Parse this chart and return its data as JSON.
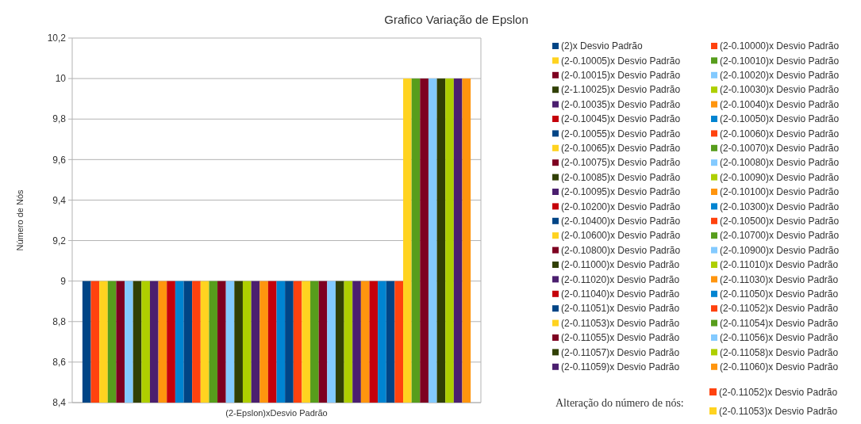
{
  "chart_data": {
    "type": "bar",
    "title": "Grafico Variação de Epslon",
    "ylabel": "Número de Nós",
    "categories": [
      "(2-Epslon)xDesvio Padrão"
    ],
    "ylim": [
      8.4,
      10.2
    ],
    "yticks": [
      {
        "value": 8.4,
        "label": "8,4"
      },
      {
        "value": 8.6,
        "label": "8,6"
      },
      {
        "value": 8.8,
        "label": "8,8"
      },
      {
        "value": 9,
        "label": "9"
      },
      {
        "value": 9.2,
        "label": "9,2"
      },
      {
        "value": 9.4,
        "label": "9,4"
      },
      {
        "value": 9.6,
        "label": "9,6"
      },
      {
        "value": 9.8,
        "label": "9,8"
      },
      {
        "value": 10,
        "label": "10"
      },
      {
        "value": 10.2,
        "label": "10,2"
      }
    ],
    "grid": "y",
    "legend": "right",
    "annotations": [
      "Alteração do número de nós:",
      "(2-0.11052)x Desvio Padrão",
      "(2-0.11053)x Desvio Padrão"
    ],
    "series": [
      {
        "name": "(2)x Desvio Padrão",
        "color": "#004586",
        "values": [
          9
        ]
      },
      {
        "name": "(2-0.10000)x Desvio Padrão",
        "color": "#ff420e",
        "values": [
          9
        ]
      },
      {
        "name": "(2-0.10005)x Desvio Padrão",
        "color": "#ffd320",
        "values": [
          9
        ]
      },
      {
        "name": "(2-0.10010)x Desvio Padrão",
        "color": "#579d1c",
        "values": [
          9
        ]
      },
      {
        "name": "(2-0.10015)x Desvio Padrão",
        "color": "#7e0021",
        "values": [
          9
        ]
      },
      {
        "name": "(2-0.10020)x Desvio Padrão",
        "color": "#83caff",
        "values": [
          9
        ]
      },
      {
        "name": "(2-1.10025)x Desvio Padrão",
        "color": "#314004",
        "values": [
          9
        ]
      },
      {
        "name": "(2-0.10030)x Desvio Padrão",
        "color": "#aecf00",
        "values": [
          9
        ]
      },
      {
        "name": "(2-0.10035)x Desvio Padrão",
        "color": "#4b1f6f",
        "values": [
          9
        ]
      },
      {
        "name": "(2-0.10040)x Desvio Padrão",
        "color": "#ff950e",
        "values": [
          9
        ]
      },
      {
        "name": "(2-0.10045)x Desvio Padrão",
        "color": "#c5000b",
        "values": [
          9
        ]
      },
      {
        "name": "(2-0.10050)x Desvio Padrão",
        "color": "#0084d1",
        "values": [
          9
        ]
      },
      {
        "name": "(2-0.10055)x Desvio Padrão",
        "color": "#004586",
        "values": [
          9
        ]
      },
      {
        "name": "(2-0.10060)x Desvio Padrão",
        "color": "#ff420e",
        "values": [
          9
        ]
      },
      {
        "name": "(2-0.10065)x Desvio Padrão",
        "color": "#ffd320",
        "values": [
          9
        ]
      },
      {
        "name": "(2-0.10070)x Desvio Padrão",
        "color": "#579d1c",
        "values": [
          9
        ]
      },
      {
        "name": "(2-0.10075)x Desvio Padrão",
        "color": "#7e0021",
        "values": [
          9
        ]
      },
      {
        "name": "(2-0.10080)x Desvio Padrão",
        "color": "#83caff",
        "values": [
          9
        ]
      },
      {
        "name": "(2-0.10085)x Desvio Padrão",
        "color": "#314004",
        "values": [
          9
        ]
      },
      {
        "name": "(2-0.10090)x Desvio Padrão",
        "color": "#aecf00",
        "values": [
          9
        ]
      },
      {
        "name": "(2-0.10095)x Desvio Padrão",
        "color": "#4b1f6f",
        "values": [
          9
        ]
      },
      {
        "name": "(2-0.10100)x Desvio Padrão",
        "color": "#ff950e",
        "values": [
          9
        ]
      },
      {
        "name": "(2-0.10200)x Desvio Padrão",
        "color": "#c5000b",
        "values": [
          9
        ]
      },
      {
        "name": "(2-0.10300)x Desvio Padrão",
        "color": "#0084d1",
        "values": [
          9
        ]
      },
      {
        "name": "(2-0.10400)x Desvio Padrão",
        "color": "#004586",
        "values": [
          9
        ]
      },
      {
        "name": "(2-0.10500)x Desvio Padrão",
        "color": "#ff420e",
        "values": [
          9
        ]
      },
      {
        "name": "(2-0.10600)x Desvio Padrão",
        "color": "#ffd320",
        "values": [
          9
        ]
      },
      {
        "name": "(2-0.10700)x Desvio Padrão",
        "color": "#579d1c",
        "values": [
          9
        ]
      },
      {
        "name": "(2-0.10800)x Desvio Padrão",
        "color": "#7e0021",
        "values": [
          9
        ]
      },
      {
        "name": "(2-0.10900)x Desvio Padrão",
        "color": "#83caff",
        "values": [
          9
        ]
      },
      {
        "name": "(2-0.11000)x Desvio Padrão",
        "color": "#314004",
        "values": [
          9
        ]
      },
      {
        "name": "(2-0.11010)x Desvio Padrão",
        "color": "#aecf00",
        "values": [
          9
        ]
      },
      {
        "name": "(2-0.11020)x Desvio Padrão",
        "color": "#4b1f6f",
        "values": [
          9
        ]
      },
      {
        "name": "(2-0.11030)x Desvio Padrão",
        "color": "#ff950e",
        "values": [
          9
        ]
      },
      {
        "name": "(2-0.11040)x Desvio Padrão",
        "color": "#c5000b",
        "values": [
          9
        ]
      },
      {
        "name": "(2-0.11050)x Desvio Padrão",
        "color": "#0084d1",
        "values": [
          9
        ]
      },
      {
        "name": "(2-0.11051)x Desvio Padrão",
        "color": "#004586",
        "values": [
          9
        ]
      },
      {
        "name": "(2-0.11052)x Desvio Padrão",
        "color": "#ff420e",
        "values": [
          9
        ]
      },
      {
        "name": "(2-0.11053)x Desvio Padrão",
        "color": "#ffd320",
        "values": [
          10
        ]
      },
      {
        "name": "(2-0.11054)x Desvio Padrão",
        "color": "#579d1c",
        "values": [
          10
        ]
      },
      {
        "name": "(2-0.11055)x Desvio Padrão",
        "color": "#7e0021",
        "values": [
          10
        ]
      },
      {
        "name": "(2-0.11056)x Desvio Padrão",
        "color": "#83caff",
        "values": [
          10
        ]
      },
      {
        "name": "(2-0.11057)x Desvio Padrão",
        "color": "#314004",
        "values": [
          10
        ]
      },
      {
        "name": "(2-0.11058)x Desvio Padrão",
        "color": "#aecf00",
        "values": [
          10
        ]
      },
      {
        "name": "(2-0.11059)x Desvio Padrão",
        "color": "#4b1f6f",
        "values": [
          10
        ]
      },
      {
        "name": "(2-0.11060)x Desvio Padrão",
        "color": "#ff950e",
        "values": [
          10
        ]
      }
    ]
  }
}
